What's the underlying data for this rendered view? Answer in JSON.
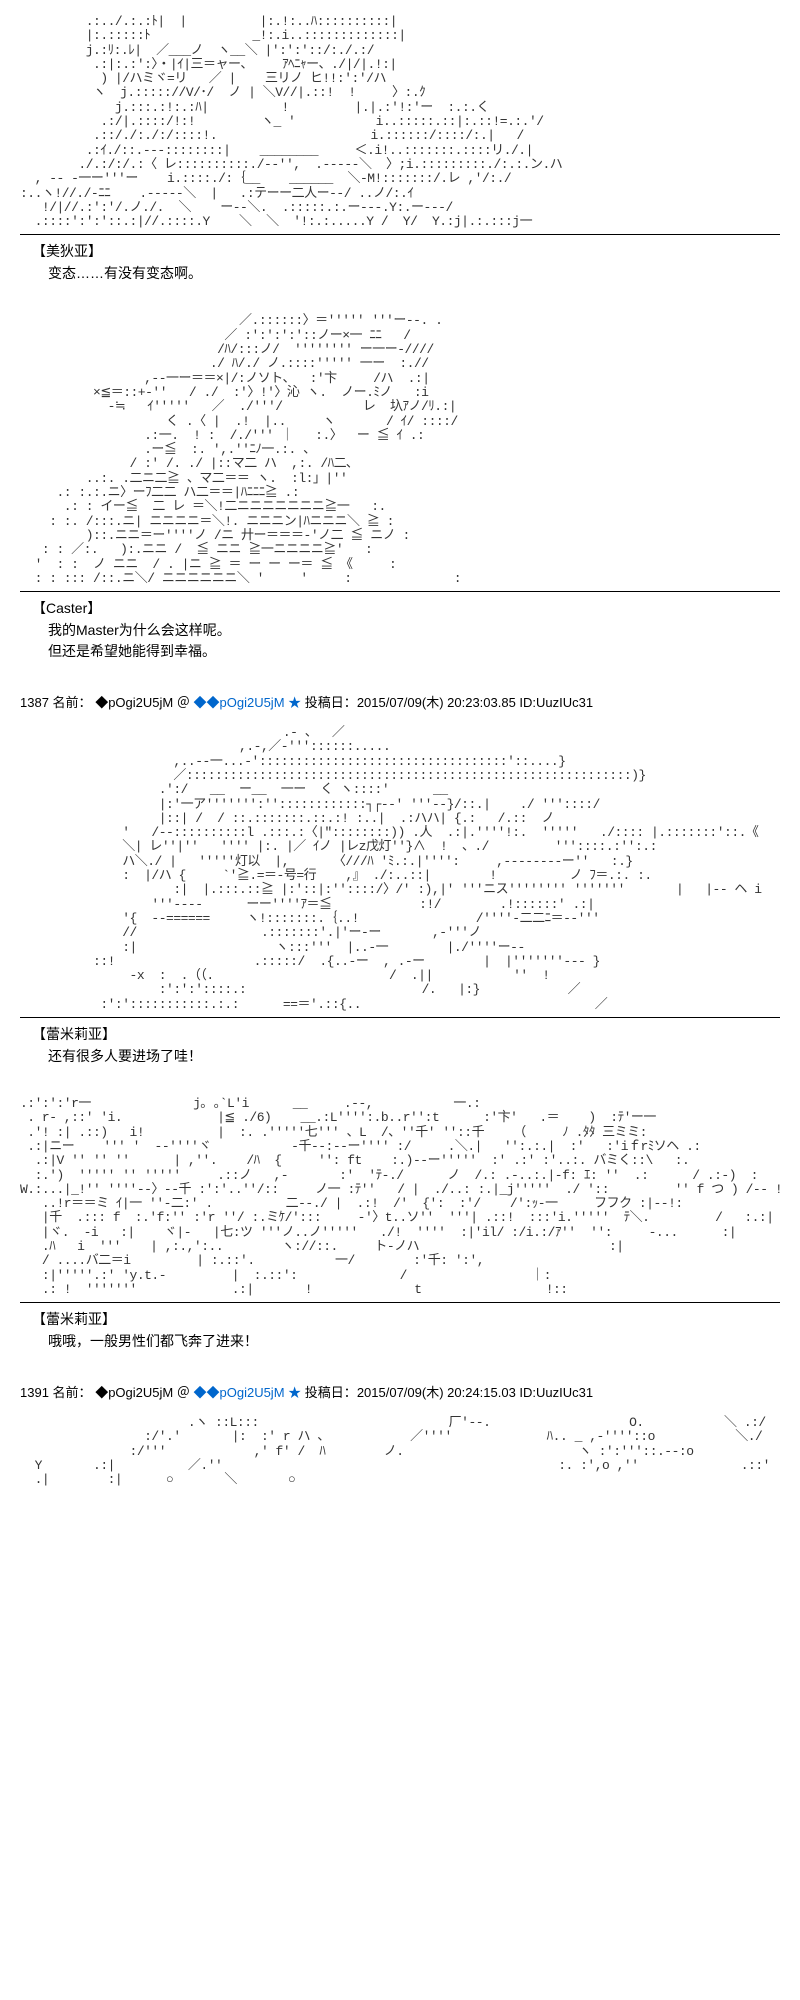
{
  "blocks": [
    {
      "art": "         .:../.:.:ﾄ|  |          |:.!:..ﾊ::::::::::|\n         |:.:::::ﾄ              _!:.i..:::::::::::::|\n         j.:ﾘ:.ﾚ|  ／___ノ  ヽ__＼ |':':'::/:./.:/\n          .:|:.:':〉・|ｲ|三＝ャー、    ｱﾍﾆｬー、./|/|.!:|\n           ) |/ハミヾ=リ   ／ |    三リノ ヒ!!:':'/ハ\n          ヽ  j.::::://V/･/  ノ | ＼V//|.::!  !     〉:.ｸ\n             j.:::.:!:.:ﾊ|          !         |.|.:'!:'ー  :.:.く\n           .:/|.::::/!:!         ヽ_ '           i..:::::.::|:.::!=.:.'/\n          .::/./:./:/::::!.                     i.::::::/::::/:.|   /\n         .:ｲ./::.---::::::::|    ________     ＜.i!..:::::::.::::リ./.|\n        ./.:/:/.:〈 レ::::::::::./--'',  .-----＼  〉;i.:::::::::./:.:.ン.ハ\n  , -- -一ー'''ー    i.::::./:｛__    ______  ＼-M!:::::::/.レ ,'/:./\n:..ヽ!//./-ﾆﾆ    .-----＼  |   .:テーー二人ー--/ ..ノ/:.ｲ\n   !/|//.:':'/.ノ./.  ＼    ー--＼.  .:::::.:.ー---.Y:.ー---/\n  .::::':':'::.:|//.::::.Y    ＼  ＼  '!:.:.....Y /  Y/  Y.:j|.:.:::j一",
      "speaker": "【美狄亚】",
      "dialogue": "变态……有没有变态啊。"
    },
    {
      "art": "                              ／.::::::〉＝''''' '''ー--. .\n                            ／ :':':':'::ノー×一 ﾆﾆ   /\n                           /ﾊ/:::ノ/  '''''''' ー一ー-////\n                          ./ ﾊ/./ ノ.::::''''' 一ー  :.//\n                 ,--一ー＝＝×|/:ノソト、  :'卞     /ハ  .:|\n          ×≦＝::+-''   / ./  :'〉!'〉沁 ヽ.  ノー.ﾐノ   :i\n            -≒   ｲ'''''   ／  ./'''/           レ  圦ｱノ/ﾘ.:|\n                    く .〈 |  .!  |..     ヽ       / ｲ/ ::::/\n                 .:一.  ! :  /./''' ｜   :.〉  ー ≦ ｲ .:\n                 .ー≦  :. ',.''ﾆﾉ一.:. 、\n               / :' /. ./ |::マ二 ハ  ,:. /ﾊ二､\n         ..:. .二ニ二≧ 、マ二＝＝ ヽ.  :l:」|''\n     .: :.:.ニ〉ーﾌ二二 ハ二＝＝|ﾊﾆﾆﾆ≧ .:\n      .: : イー≦  二 レ ＝＼!二ニニニニニニニ≧一   :.\n    : :. /:::.ニ| ニニニニ＝＼!. ニニニン|ﾊニニニ＼ ≧ :\n         )::.ニニ＝ー''''ノ /ニ 廾ー＝＝＝-'ノ二 ≦ ニノ :\n   : : ／:.   ):.ニニ /  ≦ ニニ ≧一ニニニニ≧'   :\n  '  : :  ノ ニニ  / . |ニ ≧ ＝ ー ー ー＝ ≦ 《     :\n  : : ::: /::.ニ＼/ ニニニニニニ＼ '     '     :              :",
      "speaker": "【Caster】",
      "dialogue": "我的Master为什么会这样呢。\n但还是希望她能得到幸福。"
    }
  ],
  "post1": {
    "num": "1387",
    "name_prefix": "名前：",
    "trip": "◆pOgi2U5jM",
    "at": "＠",
    "link": "◆pOgi2U5jM",
    "star": "★",
    "post_label": "投稿日：",
    "date": "2015/07/09(木) 20:23:03.85 ID:UuzIUc31"
  },
  "blocks2": [
    {
      "art": "                                    .- 、  ／\n                              ,.-,／-'''::::::.....\n                     ,..--一...-'::::::::::::::::::::::::::::::::::'::....}\n                     ／:::::::::::::::::::::::::::::::::::::::::::::::::::::::::::::)}\n                   .':/   __  ー__  一ー  く ヽ::::'      __\n                   |:'一ア''''''':''::::::::::::┐┌--' '''--}/::.|    ./ '''::::/\n                   |::| /  / ::.:::::::.::.:! :..|  .:ハハ| {.:   /.::  ノ\n              '   /--::::::::::l .:::.:〈|\"::::::::)) .人  .:|.''''!:.  '''''   ./:::: |.:::::::'::.《\n              ＼| レ''|''   '''' |:. |／ ｲノ |レz戊灯''}∧  !  、./         '''::::.:'':.:\n              ハ＼./ |   '''''灯以  |,      〈///ﾊ 'ﾐ.:.|'''':     ,--------ー''   :.}\n              :  |/ハ {     `'≧.=＝-号=行    ,』 ./:..::|        !          ノ ﾌ＝.:. :.\n                     :|  |.:::.::≧ |:'::|:''::::/〉/' :),|' '''ニス'''''''' '''''''       |   |-- ヘ i\n                  '''----      ーー''''ｱ＝≦            :!/        .!::::::' .:|\n              '{  --======     ヽ!:::::::.｛..!                /''''-二二ﾆ＝--'''\n              //                 .:::::::'.|'ー-ー       ,-'''ノ\n              :|                   ヽ:::'''  |..-一        |./''''ー--\n          ::!                   .:::::/  .{..-ー  , .-ー        |  |'''''''--- }\n               -x  :  .（（.                        /  .||           ''  !\n                   :':':'::::.:                        /.   |:}            ／\n           :':':::::::::::.:.:      ==＝'.::{..                                ／",
      "speaker": "【蕾米莉亚】",
      "dialogue": "还有很多人要进场了哇！"
    },
    {
      "art": ".:':':'r一              j｡ ｡`L'i      __     .--,           一.:\n . r- ,::' 'i.             |≦ ./6)    __.:L'''':.b..r'':t      :'卞'   .＝    )  :ﾃ'ー一\n .'! :| .::)   i!          |  :. .'''''七''' 、L  /、''千' ''::千    （     ﾉ .ﾀﾀ 三ミミ:\n .:|ニー    ''' '  --''''ヾ           -千--:--ー'''' :/     .＼.|   '':.:.|  :'   :'iｆrﾐソヘ .:\n  .:|V '' '' ''      | ,''.    /ﾊ  {     '': ft    :.)--ー'''''  :' .:' :'..:. バミく::\\   :.\n  :.')  ''''' '' '''''     .::ノ   ,-       :'  'ﾃ-./      ノ  /.: .-..:.|-f: ｴ: ''  .:      / .:-)  :\nW.:...|_!'' ''''--〉--千 :':'..''/::     ノ一 :ﾃ''   / |  ./..: :.|_j'''''  ./ '::         '' f つ ) /-- !\n   ..!r＝＝ミ ｲ|一 ''-二:' .          二--./ |  .:!  /'  {':  :'/    /':ｯ-一     フフク :|--!:\n   |千  .::: f  :.'f:'' :'r ''/ :.ミｹ/':::     -'〉t..ソ''  '''| .::!  :::'i.'''''  ﾃ＼.         /   :.:|\n   |ヾ.  -i   :|    ヾ|-   |七:ツ '''ノ..ノ'''''   ./!  ''''  :|'il/ :/i.:/ｱ''  '':     -...      :|\n   .ﾊ   i  '''    | ,:.,':..        ヽ://::.     ト-ノハ                          :|\n   / ....バ二＝i         | :.::'.           一/        :'千: ':',\n   :|'''''.:' 'y.t.-         |  :.::':              /                 ｜:\n   .: !  '''''''             .:|       !              t                 !::",
      "speaker": "【蕾米莉亚】",
      "dialogue": "哦哦，一般男性们都飞奔了进来！"
    }
  ],
  "post2": {
    "num": "1391",
    "name_prefix": "名前：",
    "trip": "◆pOgi2U5jM",
    "at": "＠",
    "link": "◆pOgi2U5jM",
    "star": "★",
    "post_label": "投稿日：",
    "date": "2015/07/09(木) 20:24:15.03 ID:UuzIUc31"
  },
  "bottom_art": "                       .ヽ ::L:::                          厂'--.                   O.           ＼ .:/\n                 :/'.'       |:  :' r ハ 、           ／''''             ﾊ.. _ ,-''''::o           ＼./\n               :/'''            ,' f' /  ﾊ        ノ.                        ヽ :':'''::.--:o                  Y\n  Y       .:|          ／.''                                              :. :',o ,''              .::'          :|\n  .|        :|      ○       ＼       ○                                                                     :|"
}
